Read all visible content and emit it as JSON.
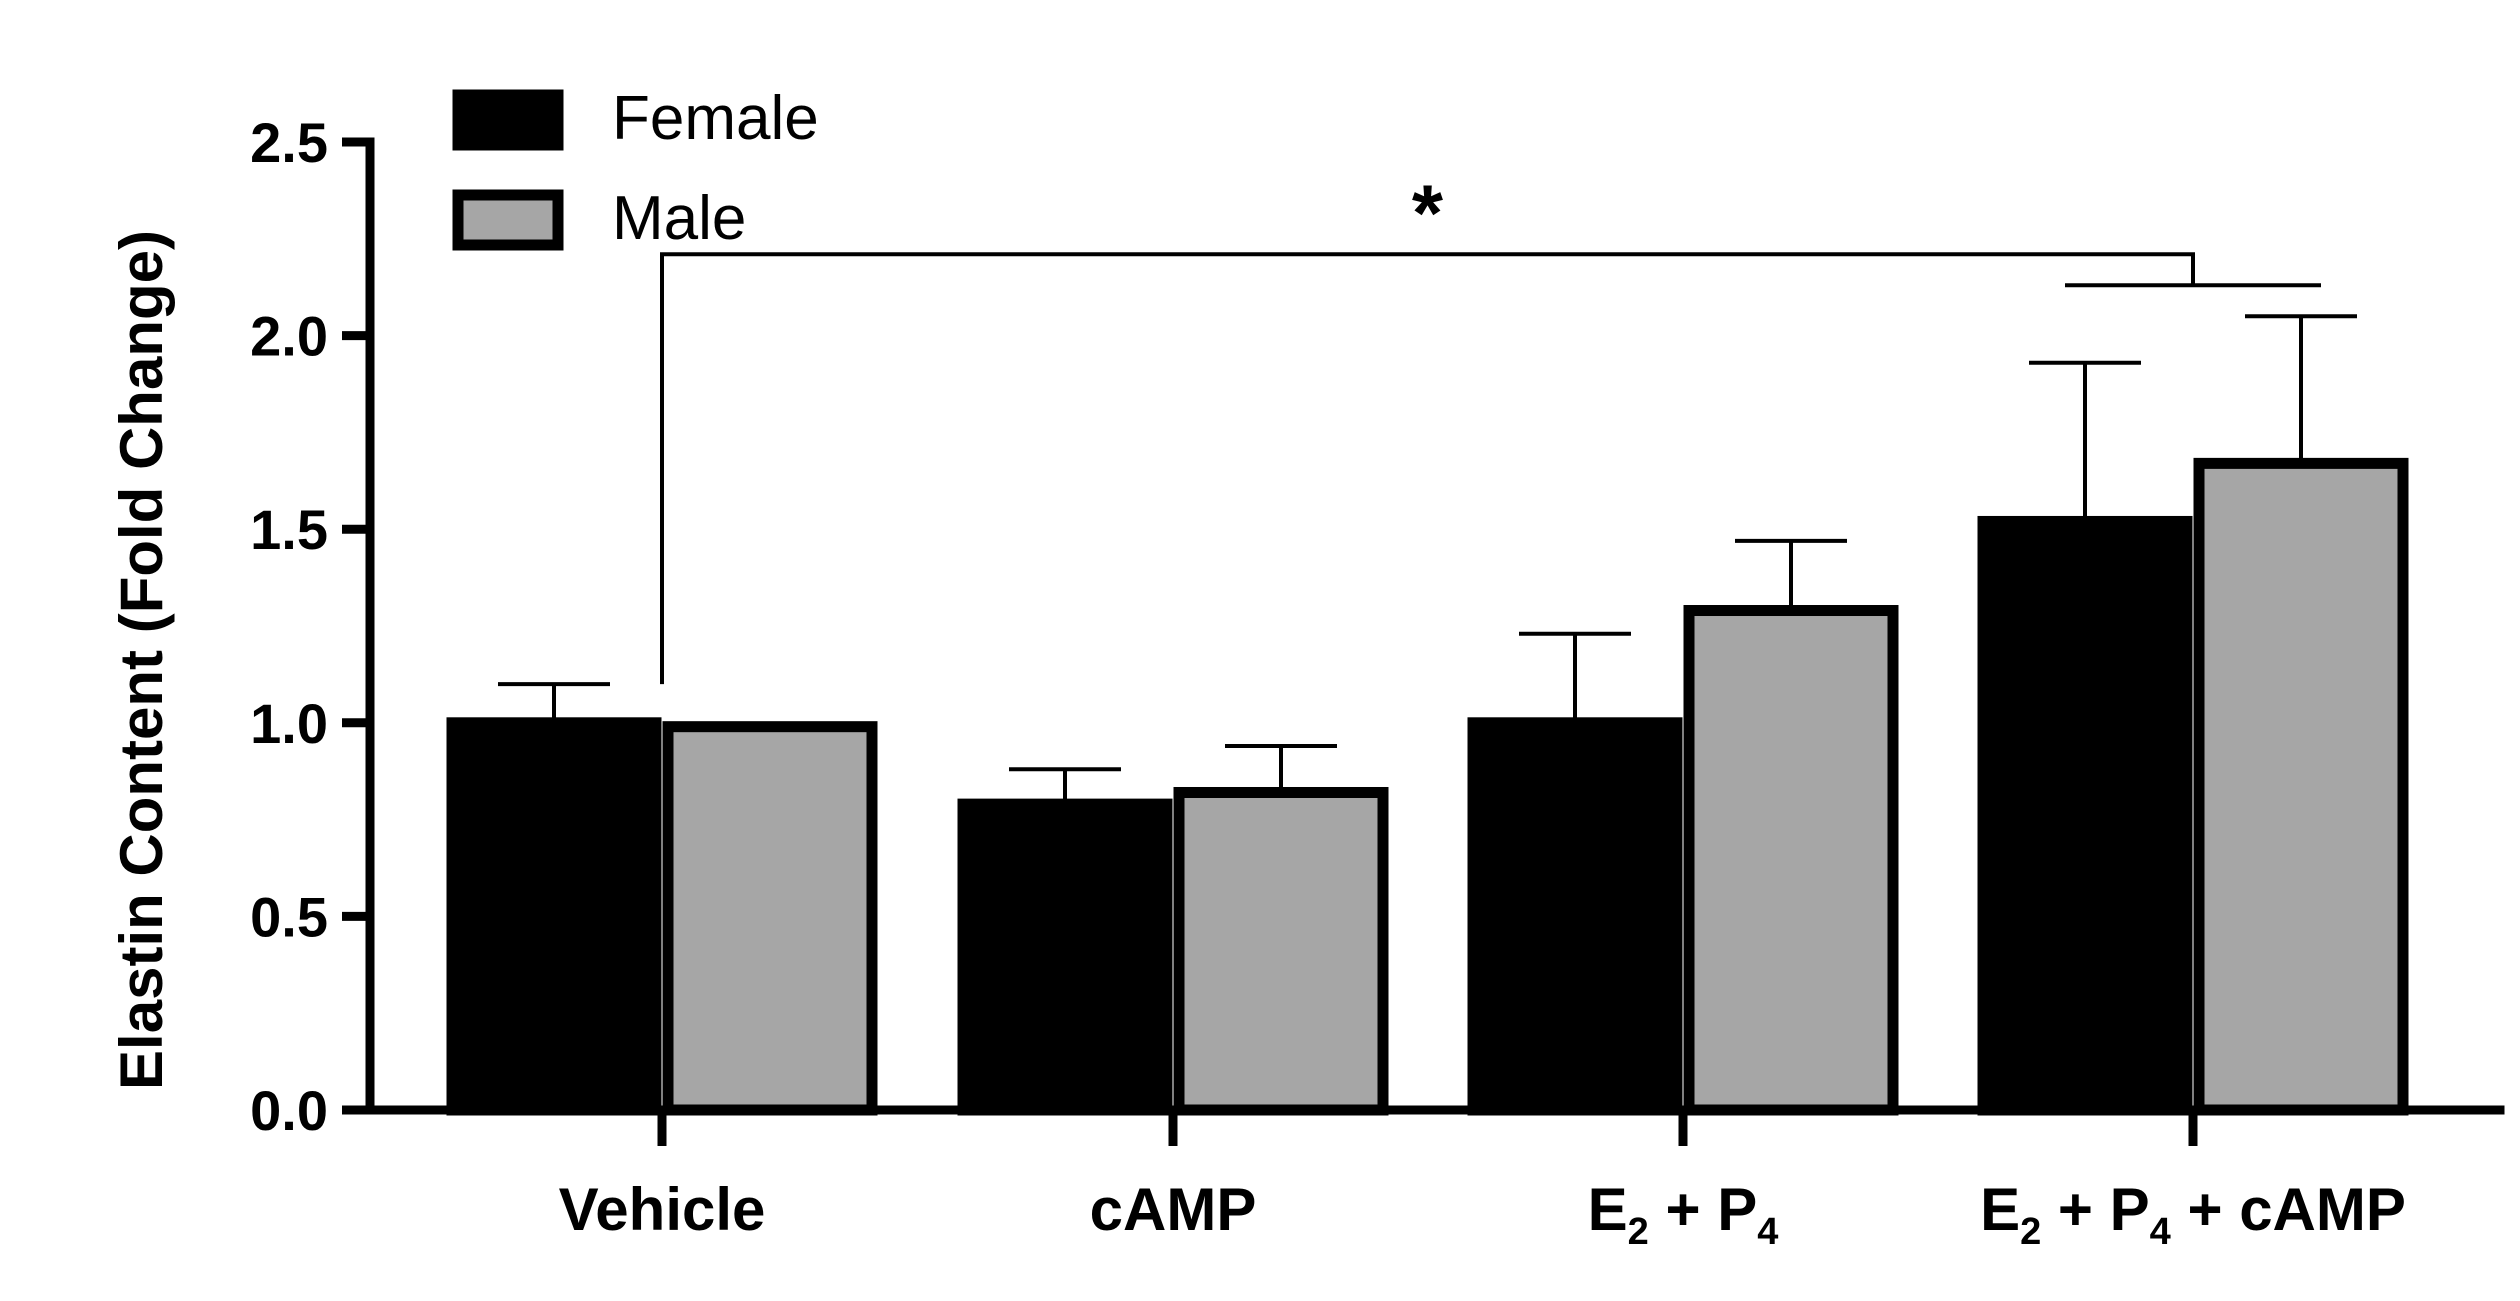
{
  "chart_data": {
    "type": "bar",
    "title": "",
    "xlabel": "",
    "ylabel": "Elastin Content (Fold Change)",
    "ylim": [
      0,
      2.5
    ],
    "yticks": [
      "0.0",
      "0.5",
      "1.0",
      "1.5",
      "2.0",
      "2.5"
    ],
    "categories": [
      {
        "base": "Vehicle"
      },
      {
        "base": "cAMP"
      },
      {
        "base": "E",
        "sub1": "2",
        "mid": " + P",
        "sub2": "4"
      },
      {
        "base": "E",
        "sub1": "2",
        "mid": " + P",
        "sub2": "4",
        "tail": " + cAMP"
      }
    ],
    "series": [
      {
        "name": "Female",
        "color": "#000000",
        "values": [
          1.0,
          0.79,
          1.0,
          1.52
        ],
        "errors": [
          0.1,
          0.09,
          0.23,
          0.41
        ]
      },
      {
        "name": "Male",
        "color": "#a6a6a6",
        "values": [
          0.99,
          0.82,
          1.29,
          1.67
        ],
        "errors": [
          0.0,
          0.12,
          0.18,
          0.38
        ]
      }
    ],
    "significance": {
      "label": "*",
      "from_category": 0,
      "to_category": 3,
      "level": 2.21
    }
  }
}
